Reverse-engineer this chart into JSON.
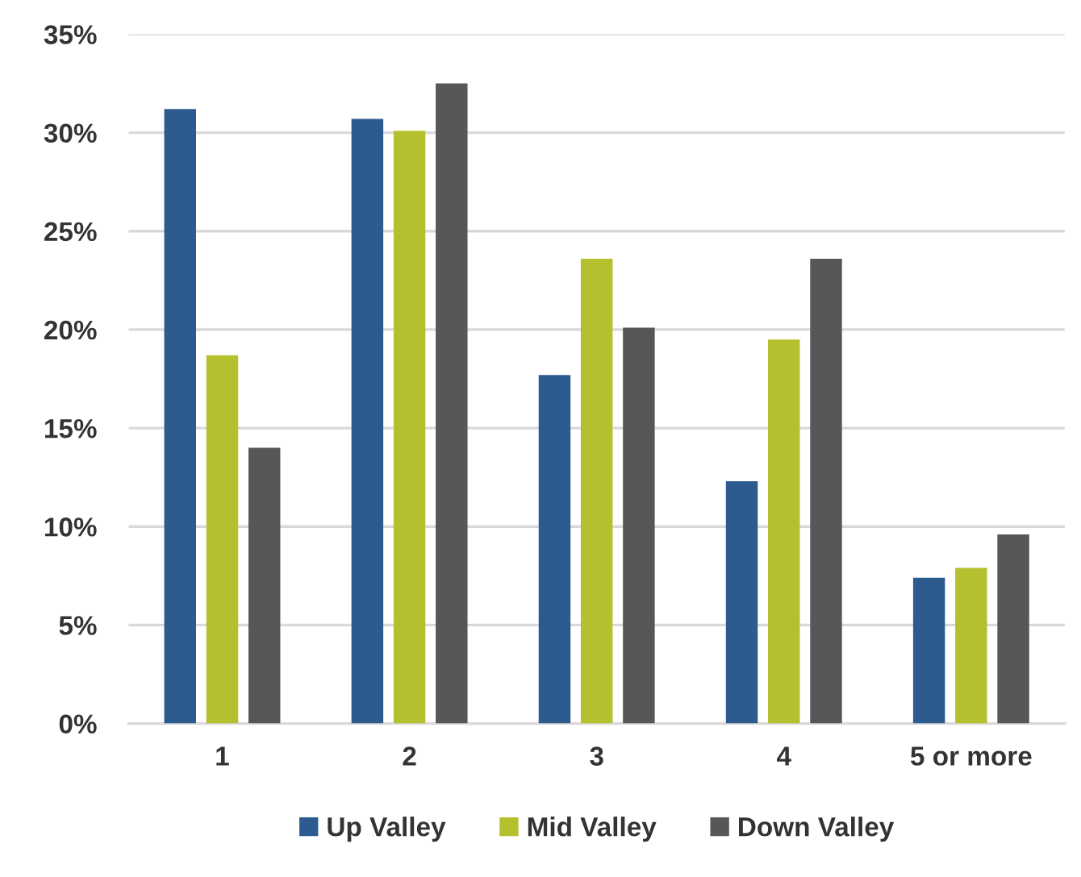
{
  "chart_data": {
    "type": "bar",
    "categories": [
      "1",
      "2",
      "3",
      "4",
      "5 or more"
    ],
    "series": [
      {
        "name": "Up Valley",
        "color": "#2e5b8f",
        "values": [
          31.2,
          30.7,
          17.7,
          12.3,
          7.4
        ]
      },
      {
        "name": "Mid Valley",
        "color": "#b5c02f",
        "values": [
          18.7,
          30.1,
          23.6,
          19.5,
          7.9
        ]
      },
      {
        "name": "Down Valley",
        "color": "#575757",
        "values": [
          14.0,
          32.5,
          20.1,
          23.6,
          9.6
        ]
      }
    ],
    "ylim": [
      0,
      35
    ],
    "yticks": [
      {
        "value": 0,
        "label": "0%"
      },
      {
        "value": 5,
        "label": "5%"
      },
      {
        "value": 10,
        "label": "10%"
      },
      {
        "value": 15,
        "label": "15%"
      },
      {
        "value": 20,
        "label": "20%"
      },
      {
        "value": 25,
        "label": "25%"
      },
      {
        "value": 30,
        "label": "30%"
      },
      {
        "value": 35,
        "label": "35%"
      }
    ],
    "grid": "y",
    "legend": "bottom"
  }
}
